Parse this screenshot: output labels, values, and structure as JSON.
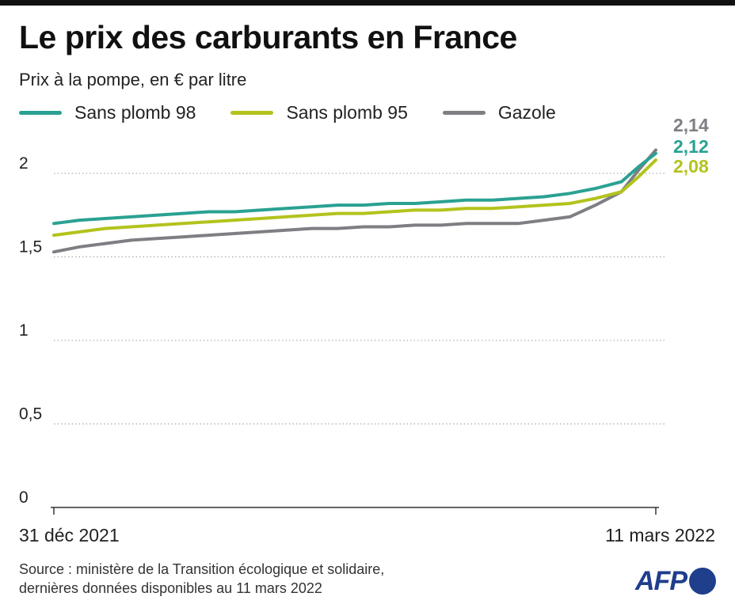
{
  "header": {
    "title": "Le prix des carburants en France",
    "subtitle": "Prix à la pompe, en € par litre"
  },
  "footer": {
    "source_line1": "Source : ministère de la Transition écologique et solidaire,",
    "source_line2": "dernières données disponibles au 11 mars 2022",
    "logo_text": "AFP"
  },
  "colors": {
    "sp98": "#2aa192",
    "sp95": "#b3c31d",
    "gazole": "#7d7f83",
    "grid": "#9a9a9a",
    "axis": "#333333",
    "logo": "#1f3e8c"
  },
  "chart_data": {
    "type": "line",
    "title": "Le prix des carburants en France",
    "subtitle": "Prix à la pompe, en € par litre",
    "xlabel": "",
    "ylabel": "",
    "x_tick_labels": [
      "31 déc 2021",
      "11 mars 2022"
    ],
    "x": [
      "2021-12-31",
      "2022-01-03",
      "2022-01-06",
      "2022-01-09",
      "2022-01-12",
      "2022-01-15",
      "2022-01-18",
      "2022-01-21",
      "2022-01-24",
      "2022-01-27",
      "2022-01-30",
      "2022-02-02",
      "2022-02-05",
      "2022-02-08",
      "2022-02-11",
      "2022-02-14",
      "2022-02-17",
      "2022-02-20",
      "2022-02-23",
      "2022-02-26",
      "2022-03-01",
      "2022-03-04",
      "2022-03-07",
      "2022-03-09",
      "2022-03-11"
    ],
    "ylim": [
      0,
      2.2
    ],
    "y_ticks": [
      0,
      0.5,
      1,
      1.5,
      2
    ],
    "y_tick_labels": [
      "0",
      "0,5",
      "1",
      "1,5",
      "2"
    ],
    "grid": true,
    "legend_position": "top",
    "series": [
      {
        "name": "Sans plomb 98",
        "color_key": "sp98",
        "end_label": "2,12",
        "values": [
          1.7,
          1.72,
          1.73,
          1.74,
          1.75,
          1.76,
          1.77,
          1.77,
          1.78,
          1.79,
          1.8,
          1.81,
          1.81,
          1.82,
          1.82,
          1.83,
          1.84,
          1.84,
          1.85,
          1.86,
          1.88,
          1.91,
          1.95,
          2.04,
          2.12
        ]
      },
      {
        "name": "Sans plomb 95",
        "color_key": "sp95",
        "end_label": "2,08",
        "values": [
          1.63,
          1.65,
          1.67,
          1.68,
          1.69,
          1.7,
          1.71,
          1.72,
          1.73,
          1.74,
          1.75,
          1.76,
          1.76,
          1.77,
          1.78,
          1.78,
          1.79,
          1.79,
          1.8,
          1.81,
          1.82,
          1.85,
          1.89,
          1.98,
          2.08
        ]
      },
      {
        "name": "Gazole",
        "color_key": "gazole",
        "end_label": "2,14",
        "values": [
          1.53,
          1.56,
          1.58,
          1.6,
          1.61,
          1.62,
          1.63,
          1.64,
          1.65,
          1.66,
          1.67,
          1.67,
          1.68,
          1.68,
          1.69,
          1.69,
          1.7,
          1.7,
          1.7,
          1.72,
          1.74,
          1.81,
          1.89,
          2.02,
          2.14
        ]
      }
    ]
  }
}
